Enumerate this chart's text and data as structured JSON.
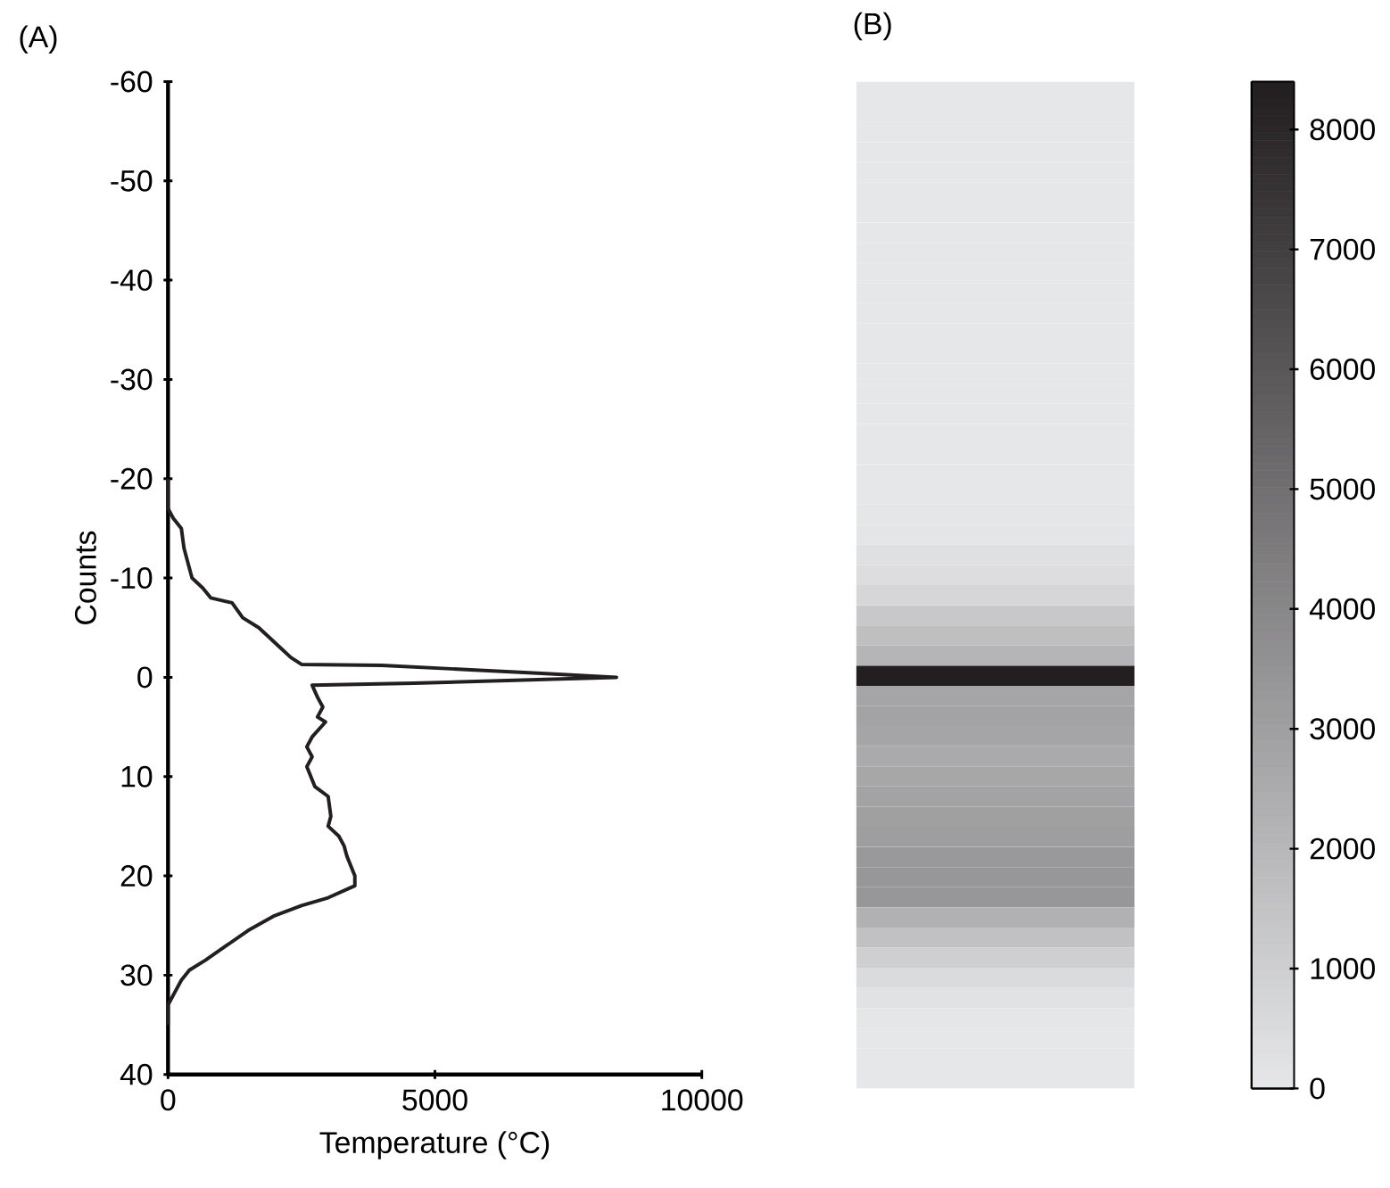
{
  "chart_data": [
    {
      "type": "line",
      "title": "(A)",
      "xlabel": "Temperature (°C)",
      "ylabel": "Counts",
      "color": "#231f20",
      "x": [
        0,
        0,
        100,
        250,
        300,
        400,
        450,
        650,
        800,
        1200,
        1400,
        1700,
        2100,
        2300,
        2500,
        4000,
        5500,
        7000,
        8400,
        6500,
        4600,
        2700,
        2800,
        2900,
        2800,
        2950,
        2700,
        2600,
        2700,
        2600,
        2750,
        3000,
        3050,
        3000,
        3200,
        3300,
        3350,
        3500,
        3500,
        3000,
        2500,
        2000,
        1500,
        1100,
        700,
        400,
        250,
        100,
        0,
        0
      ],
      "values": [
        -20,
        -17,
        -16,
        -15,
        -13,
        -11,
        -10,
        -9,
        -8,
        -7.5,
        -6,
        -5,
        -3,
        -2,
        -1.3,
        -1.2,
        -0.8,
        -0.4,
        0,
        0.3,
        0.6,
        0.8,
        2,
        3,
        4,
        4.5,
        6,
        7,
        8,
        9,
        11,
        12,
        14,
        15,
        16,
        17,
        18,
        20,
        21,
        22.2,
        23,
        24,
        25.5,
        27,
        28.5,
        29.5,
        30.5,
        32,
        33,
        35
      ],
      "xlim": [
        0,
        10000
      ],
      "ylim": [
        40,
        -60
      ],
      "xticks": [
        0,
        5000,
        10000
      ],
      "yticks": [
        -60,
        -50,
        -40,
        -30,
        -20,
        -10,
        0,
        10,
        20,
        30,
        40
      ]
    },
    {
      "type": "heatmap",
      "title": "(B)",
      "categories": [
        null
      ],
      "y_categories": [
        null,
        null,
        null,
        null,
        null,
        null,
        null,
        null,
        null,
        null,
        null,
        null,
        null,
        null,
        null,
        null,
        null,
        null,
        null,
        null,
        null,
        null,
        null,
        null,
        null,
        null,
        null,
        null,
        null,
        null,
        null,
        null,
        null,
        null,
        null,
        null,
        null,
        null,
        null,
        null,
        null,
        null,
        null,
        null,
        null,
        null,
        null,
        null,
        null,
        null
      ],
      "cells": [
        [
          0
        ],
        [
          0
        ],
        [
          0
        ],
        [
          0
        ],
        [
          0
        ],
        [
          0
        ],
        [
          0
        ],
        [
          0
        ],
        [
          0
        ],
        [
          0
        ],
        [
          0
        ],
        [
          0
        ],
        [
          0
        ],
        [
          0
        ],
        [
          0
        ],
        [
          0
        ],
        [
          0
        ],
        [
          0
        ],
        [
          0
        ],
        [
          0
        ],
        [
          0
        ],
        [
          50
        ],
        [
          100
        ],
        [
          300
        ],
        [
          400
        ],
        [
          700
        ],
        [
          1300
        ],
        [
          1700
        ],
        [
          2100
        ],
        [
          8400
        ],
        [
          2800
        ],
        [
          2900
        ],
        [
          2800
        ],
        [
          2600
        ],
        [
          2700
        ],
        [
          2900
        ],
        [
          3000
        ],
        [
          3100
        ],
        [
          3300
        ],
        [
          3400
        ],
        [
          3400
        ],
        [
          2300
        ],
        [
          1600
        ],
        [
          1000
        ],
        [
          500
        ],
        [
          200
        ],
        [
          50
        ],
        [
          0
        ],
        [
          0
        ],
        [
          0
        ]
      ],
      "clim": [
        0,
        8400
      ],
      "cticks": [
        0,
        1000,
        2000,
        3000,
        4000,
        5000,
        6000,
        7000,
        8000
      ]
    }
  ]
}
